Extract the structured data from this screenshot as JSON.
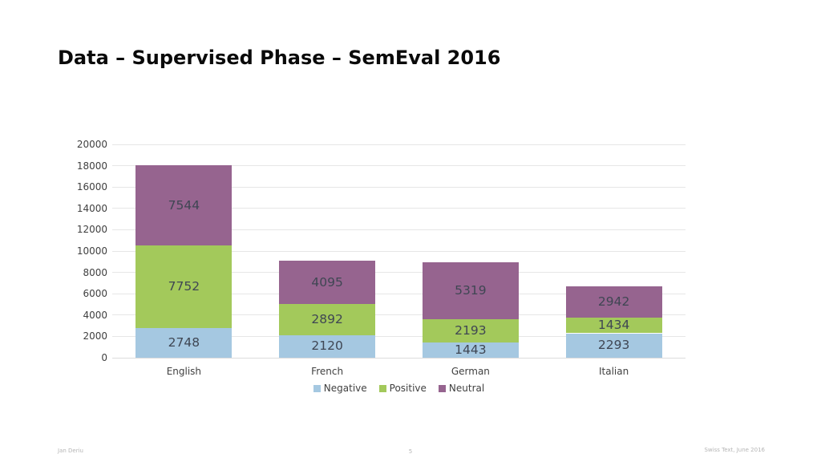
{
  "slide": {
    "title": "Data – Supervised Phase – SemEval 2016",
    "footer": {
      "author": "Jan Deriu",
      "page": "5",
      "venue": "Swiss Text, June 2016"
    }
  },
  "chart_data": {
    "type": "bar",
    "stacked": true,
    "title": "",
    "xlabel": "",
    "ylabel": "",
    "categories": [
      "English",
      "French",
      "German",
      "Italian"
    ],
    "series": [
      {
        "name": "Negative",
        "color": "#a5c8e1",
        "values": [
          2748,
          2120,
          1443,
          2293
        ]
      },
      {
        "name": "Positive",
        "color": "#a3c95b",
        "values": [
          7752,
          2892,
          2193,
          1434
        ]
      },
      {
        "name": "Neutral",
        "color": "#96648f",
        "values": [
          7544,
          4095,
          5319,
          2942
        ]
      }
    ],
    "totals": [
      18044,
      9107,
      8955,
      6669
    ],
    "ylim": [
      0,
      20000
    ],
    "ytick_step": 2000,
    "ytick_labels": [
      "0",
      "2000",
      "4000",
      "6000",
      "8000",
      "10000",
      "12000",
      "14000",
      "16000",
      "18000",
      "20000"
    ],
    "grid": true,
    "value_labels": true,
    "legend_position": "bottom",
    "colors": {
      "grid": "#e6e6e6",
      "axis_text": "#404040",
      "value_label_text": "#3f4653"
    }
  }
}
